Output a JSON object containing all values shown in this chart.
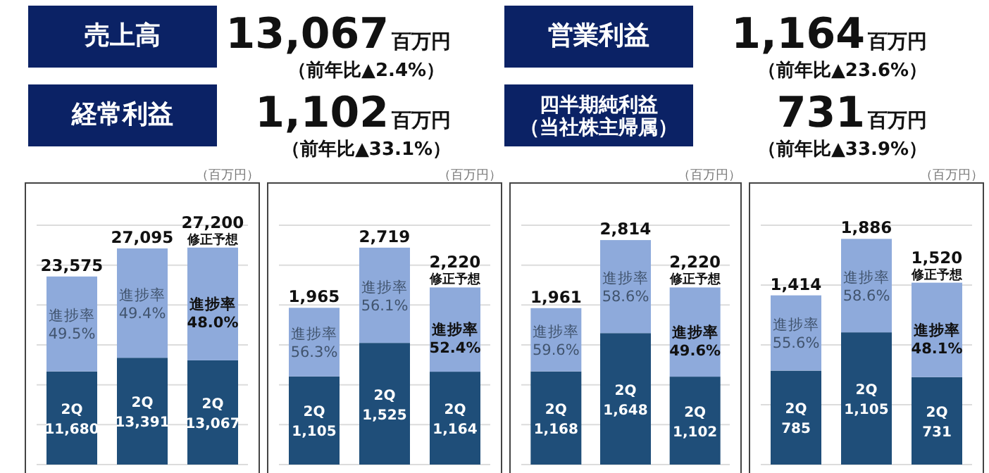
{
  "chart_data": [
    {
      "type": "other",
      "annotations": [
        "売上高",
        "13,067",
        "百万円",
        "（前年比▲2.4%）",
        "営業利益",
        "1,164",
        "百万円",
        "（前年比▲23.6%）",
        "経常利益",
        "1,102",
        "百万円",
        "（前年比▲33.1%）",
        "四半期純利益（当社株主帰属）",
        "731",
        "百万円",
        "（前年比▲33.9%）"
      ]
    },
    {
      "type": "bar",
      "stacked": true,
      "categories": [
        null,
        null,
        null
      ],
      "ylim": [
        0,
        30000
      ],
      "yticks": [
        {
          "value": 0,
          "label": null
        },
        {
          "value": 5000,
          "label": null
        },
        {
          "value": 10000,
          "label": null
        },
        {
          "value": 15000,
          "label": null
        },
        {
          "value": 20000,
          "label": null
        },
        {
          "value": 25000,
          "label": null
        },
        {
          "value": 30000,
          "label": null
        }
      ],
      "grid": "y",
      "series": [
        {
          "color": "#1f4e79",
          "values": [
            11680,
            13391,
            13067
          ],
          "value_labels": [
            "2Q\n11,680",
            "2Q\n13,391",
            "2Q\n13,067"
          ]
        },
        {
          "color": "#8eaadb",
          "values": [
            11895,
            13704,
            14133
          ]
        }
      ],
      "totals": [
        "23,575",
        "27,095",
        "27,200"
      ],
      "annotations": [
        "進捗率\n49.5%",
        "進捗率\n49.4%",
        "進捗率\n48.0%",
        "修正予想",
        "（百万円）"
      ]
    },
    {
      "type": "bar",
      "stacked": true,
      "categories": [
        null,
        null,
        null
      ],
      "ylim": [
        0,
        3000
      ],
      "yticks": [
        {
          "value": 0,
          "label": null
        },
        {
          "value": 500,
          "label": null
        },
        {
          "value": 1000,
          "label": null
        },
        {
          "value": 1500,
          "label": null
        },
        {
          "value": 2000,
          "label": null
        },
        {
          "value": 2500,
          "label": null
        },
        {
          "value": 3000,
          "label": null
        }
      ],
      "grid": "y",
      "series": [
        {
          "color": "#1f4e79",
          "values": [
            1105,
            1525,
            1164
          ],
          "value_labels": [
            "2Q\n1,105",
            "2Q\n1,525",
            "2Q\n1,164"
          ]
        },
        {
          "color": "#8eaadb",
          "values": [
            860,
            1194,
            1056
          ]
        }
      ],
      "totals": [
        "1,965",
        "2,719",
        "2,220"
      ],
      "annotations": [
        "進捗率\n56.3%",
        "進捗率\n56.1%",
        "進捗率\n52.4%",
        "修正予想",
        "（百万円）"
      ]
    },
    {
      "type": "bar",
      "stacked": true,
      "categories": [
        null,
        null,
        null
      ],
      "ylim": [
        0,
        3000
      ],
      "yticks": [
        {
          "value": 0,
          "label": null
        },
        {
          "value": 500,
          "label": null
        },
        {
          "value": 1000,
          "label": null
        },
        {
          "value": 1500,
          "label": null
        },
        {
          "value": 2000,
          "label": null
        },
        {
          "value": 2500,
          "label": null
        },
        {
          "value": 3000,
          "label": null
        }
      ],
      "grid": "y",
      "series": [
        {
          "color": "#1f4e79",
          "values": [
            1168,
            1648,
            1102
          ],
          "value_labels": [
            "2Q\n1,168",
            "2Q\n1,648",
            "2Q\n1,102"
          ]
        },
        {
          "color": "#8eaadb",
          "values": [
            793,
            1166,
            1118
          ]
        }
      ],
      "totals": [
        "1,961",
        "2,814",
        "2,220"
      ],
      "annotations": [
        "進捗率\n59.6%",
        "進捗率\n58.6%",
        "進捗率\n49.6%",
        "修正予想",
        "（百万円）"
      ]
    },
    {
      "type": "bar",
      "stacked": true,
      "categories": [
        null,
        null,
        null
      ],
      "ylim": [
        0,
        2000
      ],
      "yticks": [
        {
          "value": 0,
          "label": null
        },
        {
          "value": 500,
          "label": null
        },
        {
          "value": 1000,
          "label": null
        },
        {
          "value": 1500,
          "label": null
        },
        {
          "value": 2000,
          "label": null
        }
      ],
      "grid": "y",
      "series": [
        {
          "color": "#1f4e79",
          "values": [
            785,
            1105,
            731
          ],
          "value_labels": [
            "2Q\n785",
            "2Q\n1,105",
            "2Q\n731"
          ]
        },
        {
          "color": "#8eaadb",
          "values": [
            629,
            781,
            789
          ]
        }
      ],
      "totals": [
        "1,414",
        "1,886",
        "1,520"
      ],
      "annotations": [
        "進捗率\n55.6%",
        "進捗率\n58.6%",
        "進捗率\n48.1%",
        "修正予想",
        "（百万円）"
      ]
    }
  ]
}
